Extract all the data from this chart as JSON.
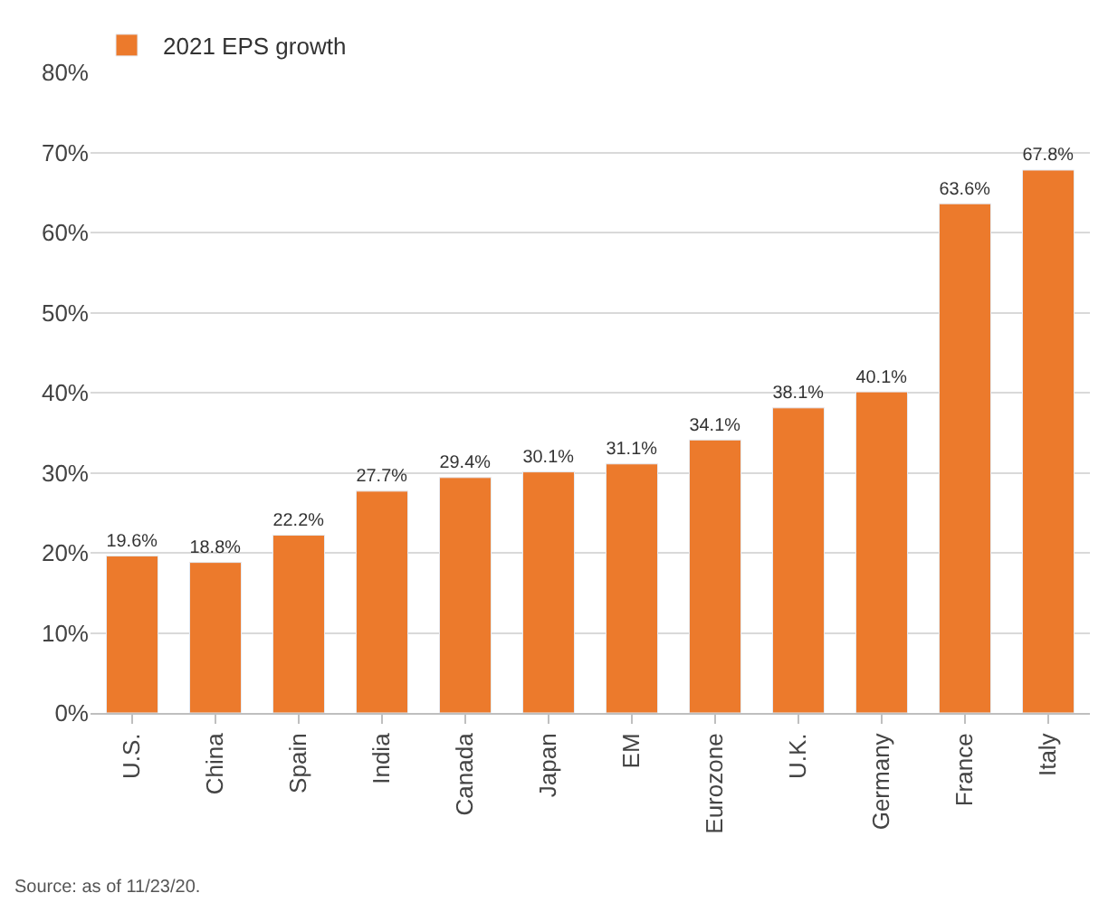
{
  "chart_data": {
    "type": "bar",
    "categories": [
      "U.S.",
      "China",
      "Spain",
      "India",
      "Canada",
      "Japan",
      "EM",
      "Eurozone",
      "U.K.",
      "Germany",
      "France",
      "Italy"
    ],
    "series": [
      {
        "name": "2021 EPS growth",
        "color": "#ec7a2c",
        "values": [
          19.6,
          18.8,
          22.2,
          27.7,
          29.4,
          30.1,
          31.1,
          34.1,
          38.1,
          40.1,
          63.6,
          67.8
        ],
        "value_labels": [
          "19.6%",
          "18.8%",
          "22.2%",
          "27.7%",
          "29.4%",
          "30.1%",
          "31.1%",
          "34.1%",
          "38.1%",
          "40.1%",
          "63.6%",
          "67.8%"
        ]
      }
    ],
    "ylim": [
      0,
      80
    ],
    "yticks": [
      {
        "value": 0,
        "label": "0%"
      },
      {
        "value": 10,
        "label": "10%"
      },
      {
        "value": 20,
        "label": "20%"
      },
      {
        "value": 30,
        "label": "30%"
      },
      {
        "value": 40,
        "label": "40%"
      },
      {
        "value": 50,
        "label": "50%"
      },
      {
        "value": 60,
        "label": "60%"
      },
      {
        "value": 70,
        "label": "70%"
      },
      {
        "value": 80,
        "label": "80%"
      }
    ],
    "grid": "y",
    "legend": "top left",
    "annotations": [
      "Source: as of 11/23/20."
    ]
  }
}
